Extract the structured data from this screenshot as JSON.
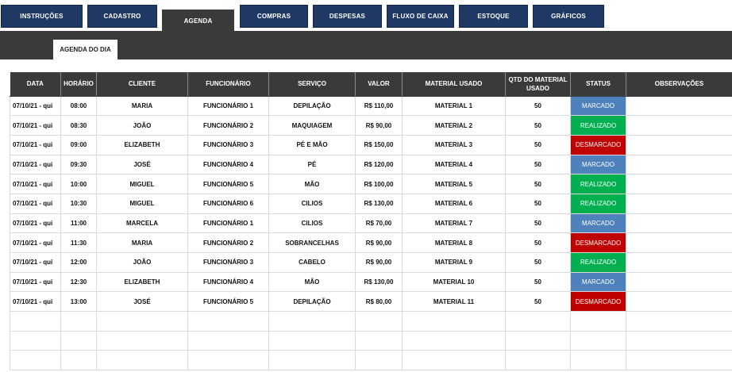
{
  "nav": {
    "tabs": [
      {
        "label": "INSTRUÇÕES"
      },
      {
        "label": "CADASTRO"
      },
      {
        "label": "AGENDA"
      },
      {
        "label": "COMPRAS"
      },
      {
        "label": "DESPESAS"
      },
      {
        "label": "FLUXO DE CAIXA"
      },
      {
        "label": "ESTOQUE"
      },
      {
        "label": "GRÁFICOS"
      }
    ],
    "active": "AGENDA"
  },
  "subtab": {
    "label": "AGENDA DO DIA"
  },
  "table": {
    "headers": [
      "DATA",
      "HORÁRIO",
      "CLIENTE",
      "FUNCIONÁRIO",
      "SERVIÇO",
      "VALOR",
      "MATERIAL USADO",
      "QTD DO MATERIAL USADO",
      "STATUS",
      "OBSERVAÇÕES"
    ],
    "rows": [
      [
        "07/10/21 - qui",
        "08:00",
        "MARIA",
        "FUNCIONÁRIO 1",
        "DEPILAÇÃO",
        "R$ 110,00",
        "MATERIAL 1",
        "50",
        "MARCADO",
        ""
      ],
      [
        "07/10/21 - qui",
        "08:30",
        "JOÃO",
        "FUNCIONÁRIO 2",
        "MAQUIAGEM",
        "R$ 90,00",
        "MATERIAL 2",
        "50",
        "REALIZADO",
        ""
      ],
      [
        "07/10/21 - qui",
        "09:00",
        "ELIZABETH",
        "FUNCIONÁRIO 3",
        "PÉ E MÃO",
        "R$ 150,00",
        "MATERIAL 3",
        "50",
        "DESMARCADO",
        ""
      ],
      [
        "07/10/21 - qui",
        "09:30",
        "JOSÉ",
        "FUNCIONÁRIO 4",
        "PÉ",
        "R$ 120,00",
        "MATERIAL 4",
        "50",
        "MARCADO",
        ""
      ],
      [
        "07/10/21 - qui",
        "10:00",
        "MIGUEL",
        "FUNCIONÁRIO 5",
        "MÃO",
        "R$ 100,00",
        "MATERIAL 5",
        "50",
        "REALIZADO",
        ""
      ],
      [
        "07/10/21 - qui",
        "10:30",
        "MIGUEL",
        "FUNCIONÁRIO 6",
        "CILIOS",
        "R$ 130,00",
        "MATERIAL 6",
        "50",
        "REALIZADO",
        ""
      ],
      [
        "07/10/21 - qui",
        "11:00",
        "MARCELA",
        "FUNCIONÁRIO 1",
        "CILIOS",
        "R$ 70,00",
        "MATERIAL 7",
        "50",
        "MARCADO",
        ""
      ],
      [
        "07/10/21 - qui",
        "11:30",
        "MARIA",
        "FUNCIONÁRIO 2",
        "SOBRANCELHAS",
        "R$ 90,00",
        "MATERIAL 8",
        "50",
        "DESMARCADO",
        ""
      ],
      [
        "07/10/21 - qui",
        "12:00",
        "JOÃO",
        "FUNCIONÁRIO 3",
        "CABELO",
        "R$ 90,00",
        "MATERIAL 9",
        "50",
        "REALIZADO",
        ""
      ],
      [
        "07/10/21 - qui",
        "12:30",
        "ELIZABETH",
        "FUNCIONÁRIO 4",
        "MÃO",
        "R$ 130,00",
        "MATERIAL 10",
        "50",
        "MARCADO",
        ""
      ],
      [
        "07/10/21 - qui",
        "13:00",
        "JOSÉ",
        "FUNCIONÁRIO 5",
        "DEPILAÇÃO",
        "R$ 80,00",
        "MATERIAL 11",
        "50",
        "DESMARCADO",
        ""
      ],
      [
        "",
        "",
        "",
        "",
        "",
        "",
        "",
        "",
        "",
        ""
      ],
      [
        "",
        "",
        "",
        "",
        "",
        "",
        "",
        "",
        "",
        ""
      ],
      [
        "",
        "",
        "",
        "",
        "",
        "",
        "",
        "",
        "",
        ""
      ]
    ]
  },
  "colors": {
    "tab_bg": "#1f3864",
    "header_bg": "#3a3a3a",
    "status_marcado": "#4f81bd",
    "status_realizado": "#00b050",
    "status_desmarcado": "#c00000"
  }
}
